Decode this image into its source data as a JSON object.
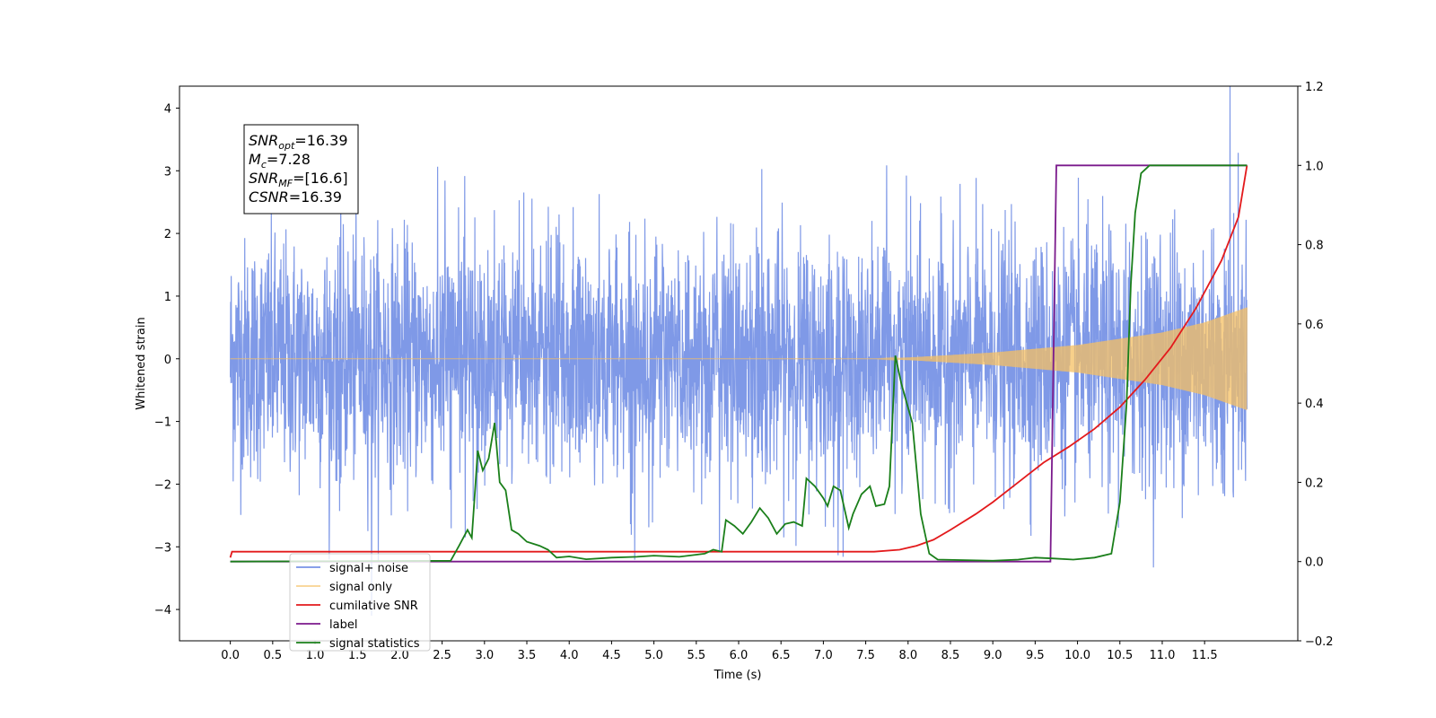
{
  "chart_data": {
    "type": "line",
    "xlabel": "Time (s)",
    "ylabel": "Whitened strain",
    "xlim": [
      -0.6,
      12.6
    ],
    "ylim": [
      -4.5,
      4.35
    ],
    "y2lim": [
      -0.2,
      1.2
    ],
    "x_ticks": [
      "0.0",
      "0.5",
      "1.0",
      "1.5",
      "2.0",
      "2.5",
      "3.0",
      "3.5",
      "4.0",
      "4.5",
      "5.0",
      "5.5",
      "6.0",
      "6.5",
      "7.0",
      "7.5",
      "8.0",
      "8.5",
      "9.0",
      "9.5",
      "10.0",
      "10.5",
      "11.0",
      "11.5"
    ],
    "y_ticks": [
      "4",
      "3",
      "2",
      "1",
      "0",
      "−1",
      "−2",
      "−3",
      "−4"
    ],
    "y2_ticks": [
      "1.2",
      "1.0",
      "0.8",
      "0.6",
      "0.4",
      "0.2",
      "0.0",
      "−0.2"
    ],
    "grid": false,
    "legend_position": "lower-left",
    "stats_box": {
      "lines": [
        {
          "sym": "SNR",
          "sub": "opt",
          "val": "=16.39"
        },
        {
          "sym": "M",
          "sub": "c",
          "val": "=7.28"
        },
        {
          "sym": "SNR",
          "sub": "MF",
          "val": "=[16.6]"
        },
        {
          "sym": "CSNR",
          "sub": "",
          "val": "=16.39"
        }
      ]
    },
    "series": [
      {
        "name": "signal+ noise",
        "color": "#7893e6",
        "axis": "left",
        "kind": "noise",
        "x_range": [
          0.0,
          12.0
        ],
        "approx_std": 1.0,
        "approx_min": -4.1,
        "approx_max": 3.93
      },
      {
        "name": "signal only",
        "color": "#f5c063",
        "axis": "left",
        "kind": "chirp",
        "envelope": [
          [
            0.0,
            0.0
          ],
          [
            7.6,
            0.0
          ],
          [
            8.0,
            0.02
          ],
          [
            9.0,
            0.1
          ],
          [
            10.0,
            0.22
          ],
          [
            11.0,
            0.42
          ],
          [
            11.5,
            0.58
          ],
          [
            12.0,
            0.82
          ]
        ]
      },
      {
        "name": "cumilative SNR",
        "color": "#e31a1c",
        "axis": "right",
        "points": [
          [
            0.0,
            0.01
          ],
          [
            0.02,
            0.025
          ],
          [
            7.6,
            0.025
          ],
          [
            7.9,
            0.03
          ],
          [
            8.1,
            0.04
          ],
          [
            8.3,
            0.055
          ],
          [
            8.5,
            0.08
          ],
          [
            8.8,
            0.12
          ],
          [
            9.0,
            0.15
          ],
          [
            9.3,
            0.2
          ],
          [
            9.6,
            0.25
          ],
          [
            9.9,
            0.29
          ],
          [
            10.2,
            0.335
          ],
          [
            10.5,
            0.39
          ],
          [
            10.8,
            0.46
          ],
          [
            11.1,
            0.54
          ],
          [
            11.4,
            0.64
          ],
          [
            11.7,
            0.76
          ],
          [
            11.9,
            0.87
          ],
          [
            12.0,
            1.0
          ]
        ]
      },
      {
        "name": "label",
        "color": "#7b1a8c",
        "axis": "right",
        "points": [
          [
            0.0,
            0.0
          ],
          [
            9.68,
            0.0
          ],
          [
            9.75,
            1.0
          ],
          [
            12.0,
            1.0
          ]
        ]
      },
      {
        "name": "signal statistics",
        "color": "#1a7f1a",
        "axis": "right",
        "points": [
          [
            0.0,
            0.0
          ],
          [
            2.6,
            0.002
          ],
          [
            2.7,
            0.04
          ],
          [
            2.8,
            0.08
          ],
          [
            2.85,
            0.06
          ],
          [
            2.92,
            0.28
          ],
          [
            2.98,
            0.23
          ],
          [
            3.05,
            0.26
          ],
          [
            3.12,
            0.35
          ],
          [
            3.18,
            0.2
          ],
          [
            3.25,
            0.18
          ],
          [
            3.32,
            0.08
          ],
          [
            3.4,
            0.07
          ],
          [
            3.5,
            0.05
          ],
          [
            3.65,
            0.04
          ],
          [
            3.75,
            0.03
          ],
          [
            3.85,
            0.01
          ],
          [
            4.0,
            0.013
          ],
          [
            4.2,
            0.006
          ],
          [
            4.5,
            0.01
          ],
          [
            4.8,
            0.012
          ],
          [
            5.0,
            0.015
          ],
          [
            5.3,
            0.012
          ],
          [
            5.6,
            0.02
          ],
          [
            5.7,
            0.03
          ],
          [
            5.8,
            0.025
          ],
          [
            5.85,
            0.105
          ],
          [
            5.95,
            0.09
          ],
          [
            6.05,
            0.07
          ],
          [
            6.15,
            0.1
          ],
          [
            6.25,
            0.135
          ],
          [
            6.35,
            0.11
          ],
          [
            6.45,
            0.07
          ],
          [
            6.55,
            0.095
          ],
          [
            6.65,
            0.1
          ],
          [
            6.75,
            0.09
          ],
          [
            6.8,
            0.21
          ],
          [
            6.9,
            0.19
          ],
          [
            7.0,
            0.16
          ],
          [
            7.05,
            0.14
          ],
          [
            7.12,
            0.19
          ],
          [
            7.2,
            0.18
          ],
          [
            7.3,
            0.085
          ],
          [
            7.35,
            0.12
          ],
          [
            7.45,
            0.17
          ],
          [
            7.55,
            0.19
          ],
          [
            7.62,
            0.14
          ],
          [
            7.72,
            0.145
          ],
          [
            7.78,
            0.19
          ],
          [
            7.85,
            0.52
          ],
          [
            7.92,
            0.45
          ],
          [
            8.05,
            0.35
          ],
          [
            8.15,
            0.12
          ],
          [
            8.25,
            0.02
          ],
          [
            8.35,
            0.005
          ],
          [
            9.0,
            0.002
          ],
          [
            9.3,
            0.005
          ],
          [
            9.5,
            0.01
          ],
          [
            9.7,
            0.008
          ],
          [
            9.95,
            0.005
          ],
          [
            10.2,
            0.01
          ],
          [
            10.4,
            0.02
          ],
          [
            10.5,
            0.15
          ],
          [
            10.58,
            0.4
          ],
          [
            10.63,
            0.7
          ],
          [
            10.68,
            0.88
          ],
          [
            10.75,
            0.98
          ],
          [
            10.85,
            1.0
          ],
          [
            12.0,
            1.0
          ]
        ]
      }
    ]
  }
}
